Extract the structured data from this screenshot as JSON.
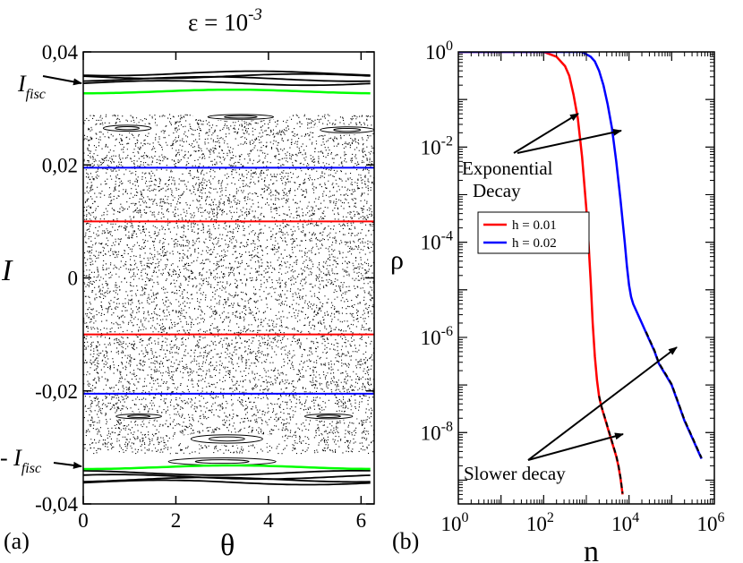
{
  "chart_data": [
    {
      "type": "scatter",
      "panel_label": "(a)",
      "title_base": "ε = 10",
      "title_exp": "-3",
      "xlabel": "θ",
      "ylabel": "I",
      "xlim": [
        0,
        6.2832
      ],
      "ylim": [
        -0.04,
        0.04
      ],
      "xticks": [
        0,
        2,
        4,
        6
      ],
      "xtick_labels": [
        "0",
        "2",
        "4",
        "6"
      ],
      "yticks": [
        -0.04,
        -0.02,
        0,
        0.02,
        0.04
      ],
      "ytick_labels": [
        "-0,04",
        "-0,02",
        "0",
        "0,02",
        "0,04"
      ],
      "fisc_upper_label": "I",
      "fisc_upper_sub": "fisc",
      "fisc_lower_label": "- I",
      "fisc_lower_sub": "fisc",
      "chaotic_sea": [
        -0.031,
        0.029
      ],
      "horizontal_lines": [
        {
          "name": "red-upper",
          "color": "#ff0000",
          "I": 0.01
        },
        {
          "name": "red-lower",
          "color": "#ff0000",
          "I": -0.01
        },
        {
          "name": "blue-upper",
          "color": "#0000ff",
          "I": 0.0195
        },
        {
          "name": "blue-lower",
          "color": "#0000ff",
          "I": -0.0205
        }
      ],
      "fisc_curves": [
        {
          "name": "green-upper",
          "color": "#00ff00",
          "I": 0.033
        },
        {
          "name": "green-lower",
          "color": "#00ff00",
          "I": -0.0335
        }
      ],
      "invariant_curves_upper": [
        0.0357,
        0.0362,
        0.0352,
        0.0345
      ],
      "invariant_curves_lower": [
        -0.0357,
        -0.0362,
        -0.0352,
        -0.0345
      ]
    },
    {
      "type": "line",
      "panel_label": "(b)",
      "xscale": "log",
      "yscale": "log",
      "xlabel": "n",
      "ylabel": "ρ",
      "xlim_exp": [
        0,
        6
      ],
      "ylim_exp": [
        -9.5,
        0
      ],
      "xticks": [
        {
          "base": "10",
          "exp": "0",
          "v": 0
        },
        {
          "base": "10",
          "exp": "2",
          "v": 2
        },
        {
          "base": "10",
          "exp": "4",
          "v": 4
        },
        {
          "base": "10",
          "exp": "6",
          "v": 6
        }
      ],
      "yticks": [
        {
          "base": "10",
          "exp": "0",
          "v": 0
        },
        {
          "base": "10",
          "exp": "-2",
          "v": -2
        },
        {
          "base": "10",
          "exp": "-4",
          "v": -4
        },
        {
          "base": "10",
          "exp": "-6",
          "v": -6
        },
        {
          "base": "10",
          "exp": "-8",
          "v": -8
        }
      ],
      "legend": [
        {
          "label": "h = 0.01",
          "color": "#ff0000"
        },
        {
          "label": "h = 0.02",
          "color": "#0000ff"
        }
      ],
      "series": [
        {
          "name": "h = 0.01",
          "color": "#ff0000",
          "log10n": [
            0,
            2.0,
            2.3,
            2.5,
            2.6,
            2.7,
            2.8,
            2.9,
            3.0,
            3.05,
            3.1,
            3.15,
            3.2,
            3.25,
            3.3,
            3.35,
            3.4,
            3.45,
            3.5,
            3.55,
            3.6,
            3.65,
            3.7,
            3.75,
            3.8,
            3.85
          ],
          "log10rho": [
            0,
            0,
            -0.1,
            -0.3,
            -0.5,
            -0.9,
            -1.4,
            -2.2,
            -3.3,
            -4.0,
            -4.8,
            -5.7,
            -6.4,
            -6.9,
            -7.25,
            -7.45,
            -7.6,
            -7.75,
            -7.9,
            -8.05,
            -8.2,
            -8.35,
            -8.5,
            -8.7,
            -8.95,
            -9.3
          ]
        },
        {
          "name": "h = 0.02",
          "color": "#0000ff",
          "log10n": [
            0,
            2.9,
            3.1,
            3.2,
            3.3,
            3.4,
            3.5,
            3.6,
            3.7,
            3.8,
            3.9,
            3.95,
            4.0,
            4.05,
            4.1,
            4.2,
            4.3,
            4.4,
            4.5,
            4.6,
            4.7,
            4.8,
            4.9,
            5.0,
            5.1,
            5.2,
            5.3,
            5.4,
            5.5,
            5.6,
            5.7
          ],
          "log10rho": [
            0,
            0,
            -0.1,
            -0.2,
            -0.4,
            -0.7,
            -1.1,
            -1.6,
            -2.3,
            -3.1,
            -4.0,
            -4.5,
            -4.9,
            -5.15,
            -5.3,
            -5.5,
            -5.7,
            -5.9,
            -6.1,
            -6.3,
            -6.55,
            -6.7,
            -6.85,
            -7.0,
            -7.25,
            -7.5,
            -7.75,
            -7.95,
            -8.15,
            -8.35,
            -8.55
          ]
        }
      ],
      "annotations": [
        {
          "name": "exponential-decay",
          "lines": [
            "Exponential",
            "Decay"
          ]
        },
        {
          "name": "slower-decay",
          "lines": [
            "Slower decay"
          ]
        }
      ]
    }
  ]
}
